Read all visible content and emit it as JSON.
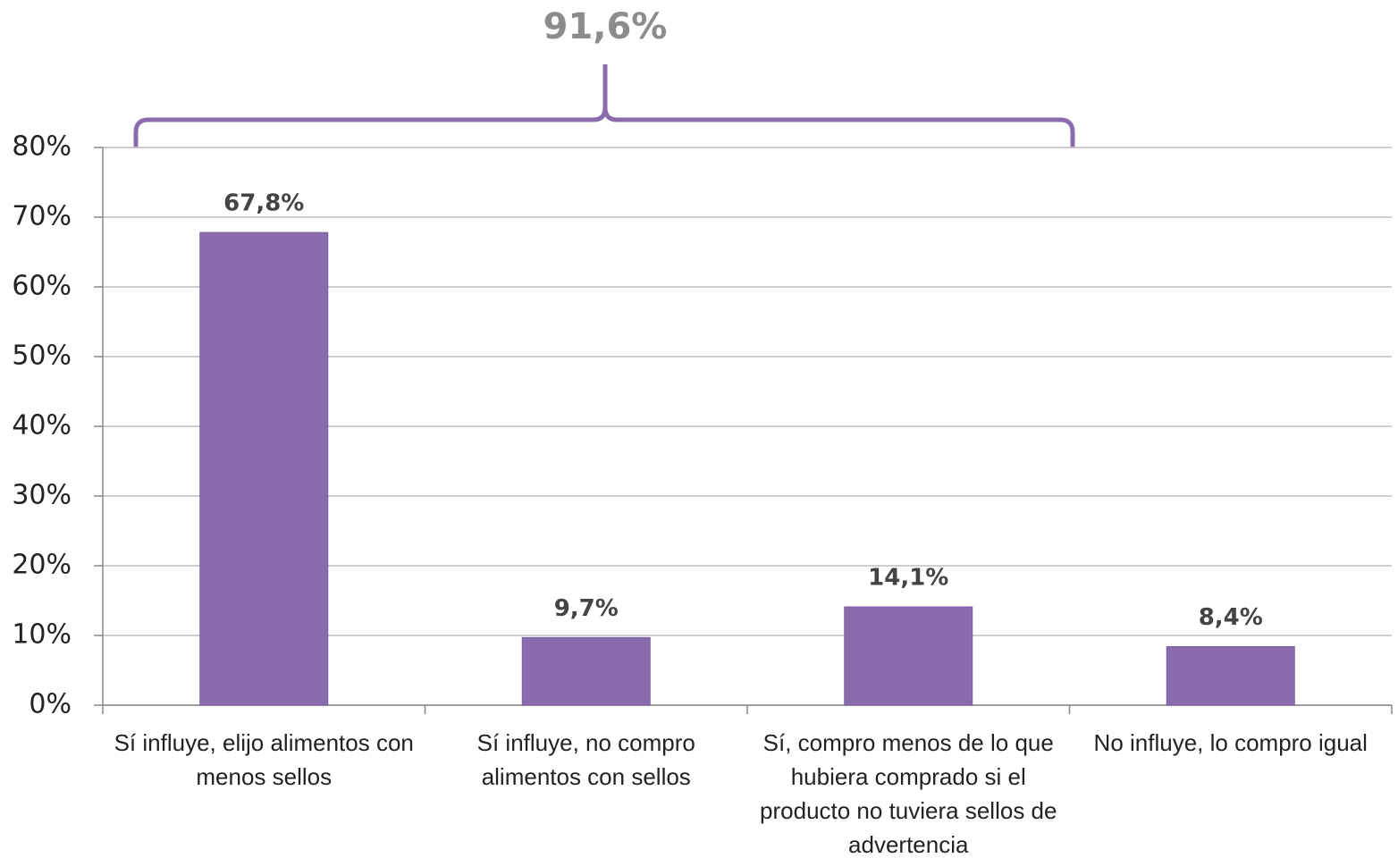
{
  "chart_data": {
    "type": "bar",
    "categories": [
      "Sí influye, elijo alimentos con menos sellos",
      "Sí influye, no compro alimentos con sellos",
      "Sí, compro menos de lo que hubiera comprado si el producto no tuviera sellos de advertencia",
      "No influye, lo compro igual"
    ],
    "values": [
      67.8,
      9.7,
      14.1,
      8.4
    ],
    "value_labels": [
      "67,8%",
      "9,7%",
      "14,1%",
      "8,4%"
    ],
    "color": "#8a6cae",
    "ylim": [
      0,
      80
    ],
    "yticks": [
      {
        "value": 0,
        "label": "0%"
      },
      {
        "value": 10,
        "label": "10%"
      },
      {
        "value": 20,
        "label": "20%"
      },
      {
        "value": 30,
        "label": "30%"
      },
      {
        "value": 40,
        "label": "40%"
      },
      {
        "value": 50,
        "label": "50%"
      },
      {
        "value": 60,
        "label": "60%"
      },
      {
        "value": 70,
        "label": "70%"
      },
      {
        "value": 80,
        "label": "80%"
      }
    ],
    "grid": true,
    "annotations": [
      {
        "text": "91,6%"
      }
    ]
  }
}
